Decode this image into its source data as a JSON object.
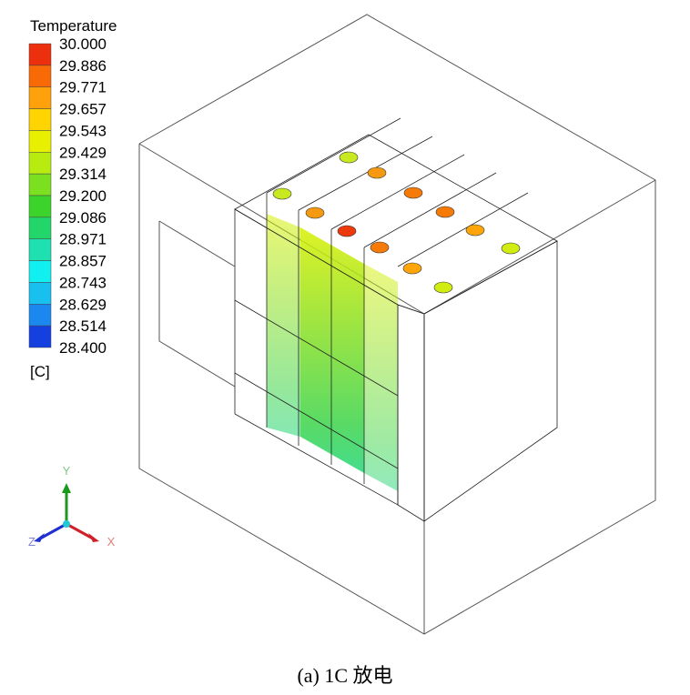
{
  "legend": {
    "title": "Temperature",
    "levels": [
      "30.000",
      "29.886",
      "29.771",
      "29.657",
      "29.543",
      "29.429",
      "29.314",
      "29.200",
      "29.086",
      "28.971",
      "28.857",
      "28.743",
      "28.629",
      "28.514",
      "28.400"
    ],
    "colors": [
      "#ec2f0c",
      "#f86a06",
      "#ffa10a",
      "#ffd400",
      "#e8f000",
      "#b8ec10",
      "#7ae020",
      "#3cd42a",
      "#22d66a",
      "#1ee0b0",
      "#10f0f0",
      "#18c0f0",
      "#1a88ee",
      "#1440e0"
    ],
    "unit": "[C]"
  },
  "axes": {
    "y": "Y",
    "z": "Z",
    "x": "X"
  },
  "caption": "(a) 1C 放电"
}
